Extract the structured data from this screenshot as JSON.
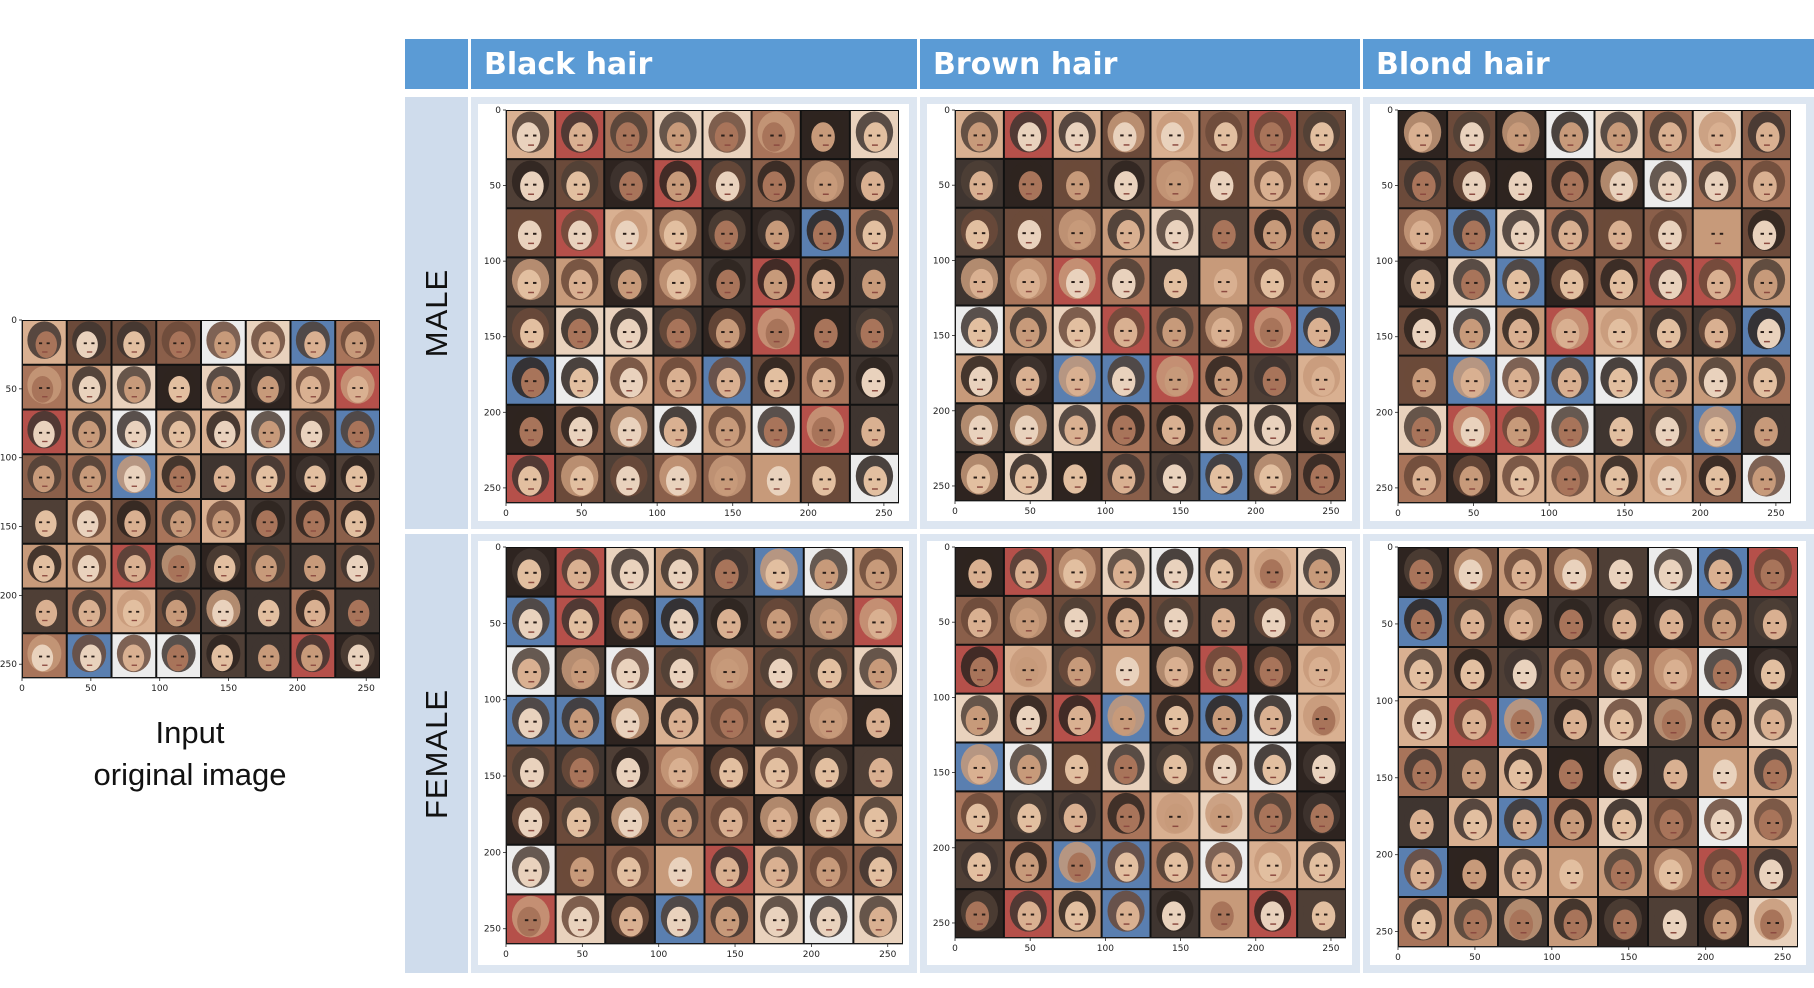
{
  "input_panel": {
    "caption_line1": "Input",
    "caption_line2": "original image",
    "x_ticks": [
      "0",
      "50",
      "100",
      "150",
      "200",
      "250"
    ],
    "y_ticks": [
      "0",
      "50",
      "100",
      "150",
      "200",
      "250"
    ]
  },
  "table": {
    "column_headers": [
      "Black hair",
      "Brown hair",
      "Blond hair"
    ],
    "row_headers": [
      "MALE",
      "FEMALE"
    ]
  },
  "generated_panels": {
    "x_ticks": [
      "0",
      "50",
      "100",
      "150",
      "200",
      "250"
    ],
    "y_ticks": [
      "0",
      "50",
      "100",
      "150",
      "200",
      "250"
    ],
    "grid": "8 x 8 face thumbnails",
    "palette": [
      "#6b4a3a",
      "#a8745a",
      "#d9b091",
      "#2e2420",
      "#e9d2bd",
      "#8a5f4a",
      "#3f3530",
      "#c79a7a",
      "#b5504a",
      "#ececec",
      "#5a7fb0",
      "#4f3f36"
    ]
  },
  "colors": {
    "header_blue": "#5b9bd5",
    "row_header_blue": "#cfdcec",
    "cell_blue": "#dde6f1"
  }
}
